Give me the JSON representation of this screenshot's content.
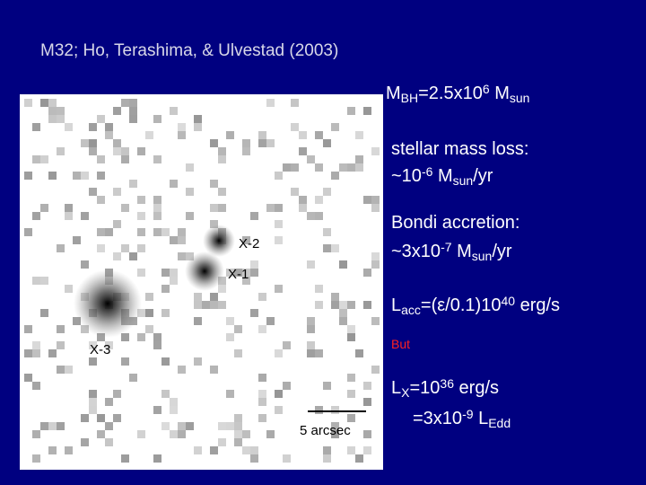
{
  "title": "M32; Ho, Terashima, & Ulvestad (2003)",
  "image": {
    "labels": [
      "X-2",
      "X-1",
      "X-3"
    ],
    "scale_bar": "5 arcsec"
  },
  "notes": [
    {
      "parts": [
        {
          "text": "M"
        },
        {
          "text": "BH",
          "sub": true
        },
        {
          "text": "=2.5x10"
        },
        {
          "text": "6",
          "sup": true
        },
        {
          "text": " M"
        },
        {
          "text": "sun",
          "sub": true
        }
      ]
    },
    {
      "parts": [
        {
          "text": "stellar mass loss:"
        }
      ]
    },
    {
      "parts": [
        {
          "text": "~10"
        },
        {
          "text": "-6",
          "sup": true
        },
        {
          "text": " M"
        },
        {
          "text": "sun",
          "sub": true
        },
        {
          "text": "/yr"
        }
      ]
    },
    {
      "parts": [
        {
          "text": "Bondi accretion:"
        }
      ]
    },
    {
      "parts": [
        {
          "text": "~3x10"
        },
        {
          "text": "-7",
          "sup": true
        },
        {
          "text": " M"
        },
        {
          "text": "sun",
          "sub": true
        },
        {
          "text": "/yr"
        }
      ]
    },
    {
      "parts": [
        {
          "text": "L"
        },
        {
          "text": "acc",
          "sub": true
        },
        {
          "text": "=(ε/0.1)10"
        },
        {
          "text": "40",
          "sup": true
        },
        {
          "text": " erg/s"
        }
      ]
    },
    {
      "parts": [
        {
          "text": "But"
        }
      ],
      "color": "red"
    },
    {
      "parts": [
        {
          "text": "L"
        },
        {
          "text": "X",
          "sub": true
        },
        {
          "text": "=10"
        },
        {
          "text": "36",
          "sup": true
        },
        {
          "text": " erg/s"
        }
      ]
    },
    {
      "parts": [
        {
          "text": "=3x10"
        },
        {
          "text": "-9",
          "sup": true
        },
        {
          "text": " L"
        },
        {
          "text": "Edd",
          "sub": true
        }
      ]
    }
  ]
}
